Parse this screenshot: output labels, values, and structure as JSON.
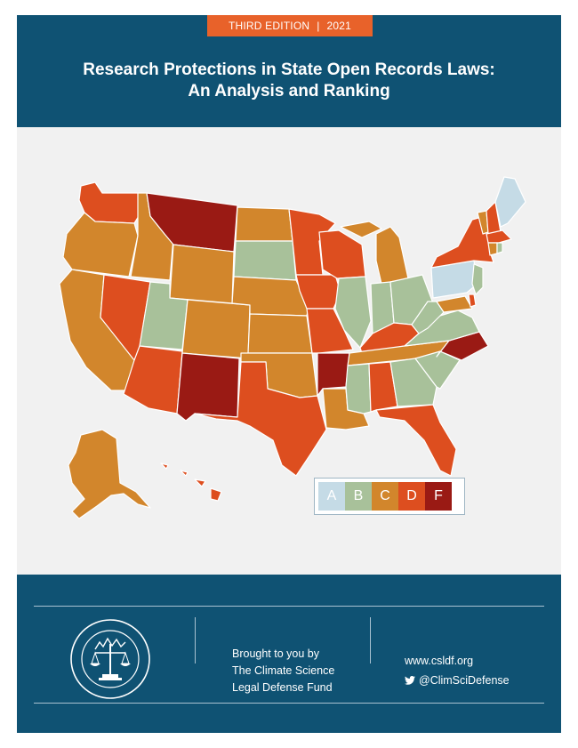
{
  "header": {
    "edition": "THIRD EDITION",
    "separator": "|",
    "year": "2021",
    "title_line1": "Research Protections in State Open Records Laws:",
    "title_line2": "An Analysis and Ranking",
    "background_color": "#0f5273",
    "badge_color": "#e8622a"
  },
  "map": {
    "grade_colors": {
      "A": "#c5dbe6",
      "B": "#a8c19a",
      "C": "#d2862c",
      "D": "#dd4e1f",
      "F": "#9a1a14"
    }
  },
  "legend": {
    "items": [
      {
        "grade": "A",
        "color": "#c5dbe6"
      },
      {
        "grade": "B",
        "color": "#a8c19a"
      },
      {
        "grade": "C",
        "color": "#d2862c"
      },
      {
        "grade": "D",
        "color": "#dd4e1f"
      },
      {
        "grade": "F",
        "color": "#9a1a14"
      }
    ]
  },
  "footer": {
    "seal_icon": "scales-of-justice-seal-icon",
    "brought_line1": "Brought to you by",
    "brought_line2": "The Climate Science",
    "brought_line3": "Legal Defense Fund",
    "website": "www.csldf.org",
    "twitter_icon": "twitter-bird-icon",
    "twitter": "@ClimSciDefense"
  }
}
